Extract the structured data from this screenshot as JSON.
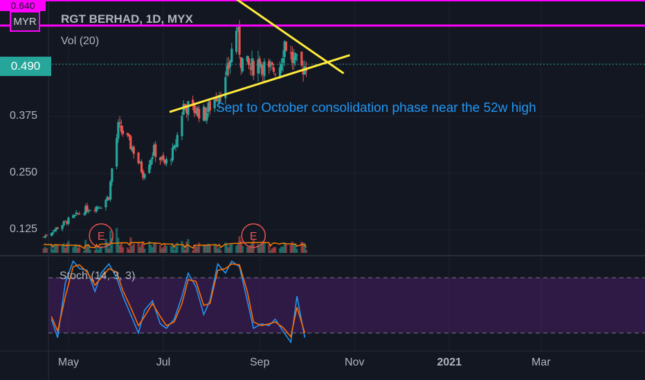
{
  "header": {
    "currency": "MYR",
    "title": "RGT BERHAD, 1D, MYX",
    "volume_label": "Vol (20)",
    "stoch_label": "Stoch (14, 3, 3)",
    "top_price_label": "0.640",
    "last_price_label": "0.490",
    "annotation": "Sept to October consolidation phase near the 52w high",
    "earnings_marker": "E"
  },
  "colors": {
    "background": "#131722",
    "up": "#26a69a",
    "down": "#ef5350",
    "trendline": "#ffeb3b",
    "resistance": "#ff00ff",
    "annotation": "#2196f3",
    "volume_ma": "#f57c00",
    "stoch_k": "#2196f3",
    "stoch_d": "#ff6d00",
    "stoch_band": "#7b1fa2"
  },
  "chart_data": [
    {
      "type": "candlestick",
      "title": "RGT BERHAD, 1D, MYX",
      "currency": "MYR",
      "y_ticks": [
        "0.125",
        "0.250",
        "0.375",
        "0.490"
      ],
      "x_ticks": [
        "May",
        "Jul",
        "Sep",
        "Nov",
        "2021",
        "Mar"
      ],
      "last_price": 0.49,
      "resistance_level": 0.64,
      "close_path": [
        {
          "date": "2020-04-15",
          "close": 0.11
        },
        {
          "date": "2020-04-28",
          "close": 0.14
        },
        {
          "date": "2020-05-12",
          "close": 0.17
        },
        {
          "date": "2020-05-22",
          "close": 0.18
        },
        {
          "date": "2020-05-27",
          "close": 0.2
        },
        {
          "date": "2020-05-29",
          "close": 0.26
        },
        {
          "date": "2020-06-02",
          "close": 0.35
        },
        {
          "date": "2020-06-05",
          "close": 0.34
        },
        {
          "date": "2020-06-12",
          "close": 0.3
        },
        {
          "date": "2020-06-18",
          "close": 0.25
        },
        {
          "date": "2020-06-25",
          "close": 0.3
        },
        {
          "date": "2020-07-02",
          "close": 0.27
        },
        {
          "date": "2020-07-08",
          "close": 0.3
        },
        {
          "date": "2020-07-14",
          "close": 0.4
        },
        {
          "date": "2020-07-21",
          "close": 0.39
        },
        {
          "date": "2020-07-28",
          "close": 0.38
        },
        {
          "date": "2020-08-04",
          "close": 0.42
        },
        {
          "date": "2020-08-10",
          "close": 0.45
        },
        {
          "date": "2020-08-14",
          "close": 0.52
        },
        {
          "date": "2020-08-17",
          "close": 0.57
        },
        {
          "date": "2020-08-20",
          "close": 0.5
        },
        {
          "date": "2020-08-26",
          "close": 0.48
        },
        {
          "date": "2020-09-01",
          "close": 0.5
        },
        {
          "date": "2020-09-07",
          "close": 0.47
        },
        {
          "date": "2020-09-14",
          "close": 0.49
        },
        {
          "date": "2020-09-17",
          "close": 0.54
        },
        {
          "date": "2020-09-22",
          "close": 0.5
        },
        {
          "date": "2020-09-28",
          "close": 0.48
        },
        {
          "date": "2020-10-01",
          "close": 0.49
        }
      ],
      "trendlines": [
        {
          "name": "upper",
          "from": {
            "date": "2020-08-10",
            "price": 0.65
          },
          "to": {
            "date": "2020-10-25",
            "price": 0.47
          }
        },
        {
          "name": "lower",
          "from": {
            "date": "2020-07-05",
            "price": 0.385
          },
          "to": {
            "date": "2020-10-29",
            "price": 0.51
          }
        }
      ],
      "earnings_dates": [
        "2020-05-22",
        "2020-08-28"
      ]
    },
    {
      "type": "line",
      "title": "Stoch (14, 3, 3)",
      "ylim": [
        0,
        100
      ],
      "bands": [
        20,
        80
      ],
      "series": [
        {
          "key": "k",
          "x": [
            "2020-04-20",
            "2020-04-24",
            "2020-04-29",
            "2020-05-04",
            "2020-05-08",
            "2020-05-13",
            "2020-05-18",
            "2020-05-22",
            "2020-05-27",
            "2020-06-01",
            "2020-06-05",
            "2020-06-10",
            "2020-06-15",
            "2020-06-19",
            "2020-06-24",
            "2020-06-29",
            "2020-07-03",
            "2020-07-08",
            "2020-07-13",
            "2020-07-17",
            "2020-07-22",
            "2020-07-27",
            "2020-07-31",
            "2020-08-05",
            "2020-08-10",
            "2020-08-14",
            "2020-08-19",
            "2020-08-24",
            "2020-08-28",
            "2020-09-02",
            "2020-09-07",
            "2020-09-11",
            "2020-09-16",
            "2020-09-21",
            "2020-09-25",
            "2020-09-30"
          ],
          "values": [
            35,
            15,
            75,
            98,
            90,
            88,
            65,
            85,
            95,
            80,
            60,
            40,
            20,
            45,
            55,
            30,
            25,
            35,
            60,
            85,
            70,
            40,
            55,
            95,
            85,
            98,
            92,
            55,
            25,
            30,
            28,
            35,
            22,
            10,
            60,
            15
          ]
        },
        {
          "key": "d",
          "x": [
            "2020-04-20",
            "2020-04-24",
            "2020-04-29",
            "2020-05-04",
            "2020-05-08",
            "2020-05-13",
            "2020-05-18",
            "2020-05-22",
            "2020-05-27",
            "2020-06-01",
            "2020-06-05",
            "2020-06-10",
            "2020-06-15",
            "2020-06-19",
            "2020-06-24",
            "2020-06-29",
            "2020-07-03",
            "2020-07-08",
            "2020-07-13",
            "2020-07-17",
            "2020-07-22",
            "2020-07-27",
            "2020-07-31",
            "2020-08-05",
            "2020-08-10",
            "2020-08-14",
            "2020-08-19",
            "2020-08-24",
            "2020-08-28",
            "2020-09-02",
            "2020-09-07",
            "2020-09-11",
            "2020-09-16",
            "2020-09-21",
            "2020-09-25",
            "2020-09-30"
          ],
          "values": [
            38,
            22,
            60,
            92,
            94,
            86,
            72,
            80,
            90,
            86,
            66,
            48,
            28,
            38,
            52,
            38,
            28,
            32,
            52,
            78,
            76,
            50,
            52,
            88,
            90,
            95,
            94,
            65,
            32,
            28,
            30,
            32,
            26,
            16,
            48,
            20
          ]
        }
      ]
    }
  ]
}
